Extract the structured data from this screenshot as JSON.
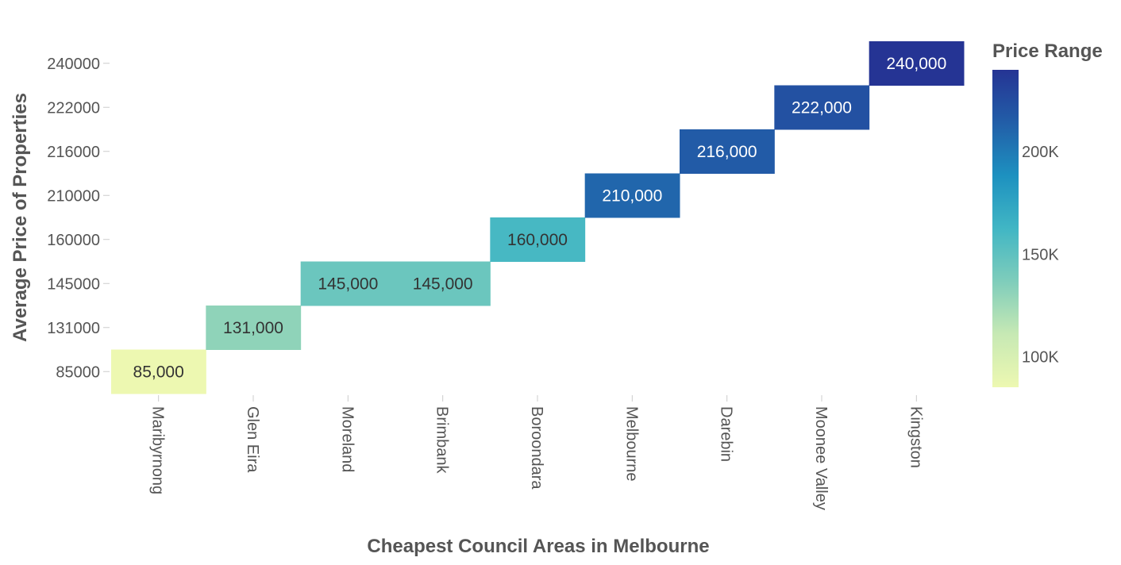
{
  "chart_data": {
    "type": "heatmap",
    "title": "",
    "xlabel": "Cheapest Council Areas in Melbourne",
    "ylabel": "Average Price of Properties",
    "x_categories": [
      "Maribyrnong",
      "Glen Eira",
      "Moreland",
      "Brimbank",
      "Boroondara",
      "Melbourne",
      "Darebin",
      "Moonee Valley",
      "Kingston"
    ],
    "y_categories": [
      "85000",
      "131000",
      "145000",
      "160000",
      "210000",
      "216000",
      "222000",
      "240000"
    ],
    "cells": [
      {
        "x": "Maribyrnong",
        "y": "85000",
        "value": 85000,
        "label": "85,000"
      },
      {
        "x": "Glen Eira",
        "y": "131000",
        "value": 131000,
        "label": "131,000"
      },
      {
        "x": "Moreland",
        "y": "145000",
        "value": 145000,
        "label": "145,000"
      },
      {
        "x": "Brimbank",
        "y": "145000",
        "value": 145000,
        "label": "145,000"
      },
      {
        "x": "Boroondara",
        "y": "160000",
        "value": 160000,
        "label": "160,000"
      },
      {
        "x": "Melbourne",
        "y": "210000",
        "value": 210000,
        "label": "210,000"
      },
      {
        "x": "Darebin",
        "y": "216000",
        "value": 216000,
        "label": "216,000"
      },
      {
        "x": "Moonee Valley",
        "y": "222000",
        "value": 222000,
        "label": "222,000"
      },
      {
        "x": "Kingston",
        "y": "240000",
        "value": 240000,
        "label": "240,000"
      }
    ],
    "colorbar": {
      "title": "Price Range",
      "range": [
        85000,
        240000
      ],
      "ticks": [
        {
          "value": 100000,
          "label": "100K"
        },
        {
          "value": 150000,
          "label": "150K"
        },
        {
          "value": 200000,
          "label": "200K"
        }
      ],
      "colorscale": [
        "#edf8b1",
        "#c7e9b4",
        "#7fcdbb",
        "#41b6c4",
        "#1d91c0",
        "#225ea8",
        "#253494"
      ]
    },
    "grid": false,
    "legend": "right"
  }
}
